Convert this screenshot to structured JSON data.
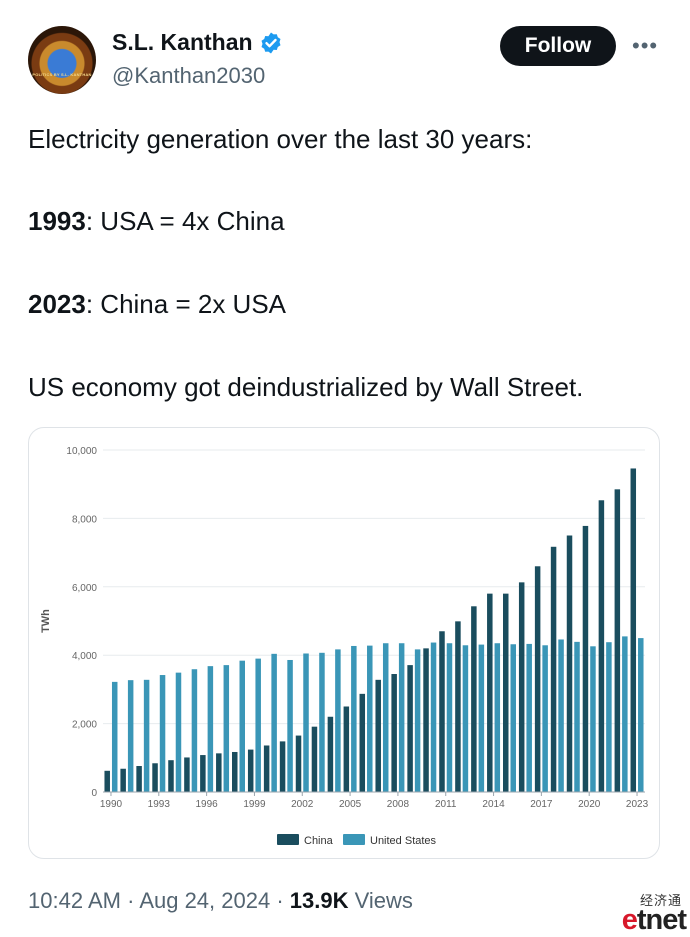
{
  "header": {
    "display_name": "S.L. Kanthan",
    "handle": "@Kanthan2030",
    "follow_label": "Follow",
    "more_label": "•••",
    "avatar_caption": "POLITICS BY S.L. KANTHAN"
  },
  "tweet": {
    "line1": "Electricity generation over the last 30 years:",
    "line2_bold": "1993",
    "line2_rest": ": USA = 4x China",
    "line3_bold": "2023",
    "line3_rest": ": China = 2x USA",
    "line4": "US economy got deindustrialized by Wall Street."
  },
  "chart_data": {
    "type": "bar",
    "title": "",
    "xlabel": "",
    "ylabel": "TWh",
    "ylim": [
      0,
      10000
    ],
    "y_ticks": [
      "0",
      "2,000",
      "4,000",
      "6,000",
      "8,000",
      "10,000"
    ],
    "x_tick_labels": [
      "1990",
      "1993",
      "1996",
      "1999",
      "2002",
      "2005",
      "2008",
      "2011",
      "2014",
      "2017",
      "2020",
      "2023"
    ],
    "categories": [
      "1990",
      "1991",
      "1992",
      "1993",
      "1994",
      "1995",
      "1996",
      "1997",
      "1998",
      "1999",
      "2000",
      "2001",
      "2002",
      "2003",
      "2004",
      "2005",
      "2006",
      "2007",
      "2008",
      "2009",
      "2010",
      "2011",
      "2012",
      "2013",
      "2014",
      "2015",
      "2016",
      "2017",
      "2018",
      "2019",
      "2020",
      "2021",
      "2022",
      "2023"
    ],
    "grid": true,
    "legend_position": "bottom-center",
    "series": [
      {
        "name": "China",
        "color": "#1a4d5e",
        "values": [
          620,
          680,
          760,
          840,
          930,
          1010,
          1080,
          1130,
          1170,
          1240,
          1360,
          1480,
          1650,
          1910,
          2200,
          2500,
          2870,
          3280,
          3450,
          3710,
          4200,
          4700,
          4990,
          5430,
          5800,
          5800,
          6130,
          6600,
          7170,
          7500,
          7780,
          8530,
          8850,
          9460
        ]
      },
      {
        "name": "United States",
        "color": "#3a96b7",
        "values": [
          3220,
          3270,
          3280,
          3420,
          3490,
          3590,
          3680,
          3710,
          3840,
          3900,
          4040,
          3860,
          4050,
          4070,
          4170,
          4270,
          4280,
          4350,
          4350,
          4170,
          4370,
          4350,
          4290,
          4310,
          4350,
          4320,
          4330,
          4290,
          4460,
          4390,
          4260,
          4380,
          4550,
          4500
        ]
      }
    ]
  },
  "meta": {
    "time": "10:42 AM",
    "date": "Aug 24, 2024",
    "views_count": "13.9K",
    "views_label": "Views",
    "separator": "·"
  },
  "watermark": {
    "chinese": "经济通",
    "brand_e": "e",
    "brand_rest": "tnet"
  }
}
